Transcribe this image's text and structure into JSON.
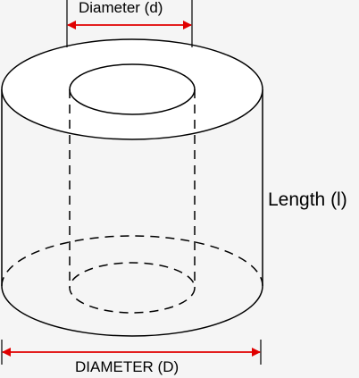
{
  "labels": {
    "inner_diameter": "Diameter (d)",
    "length": "Length (l)",
    "outer_diameter": "DIAMETER (D)"
  },
  "colors": {
    "background": "#f5f5f5",
    "outline": "#000000",
    "dimension_arrow": "#e00000"
  }
}
